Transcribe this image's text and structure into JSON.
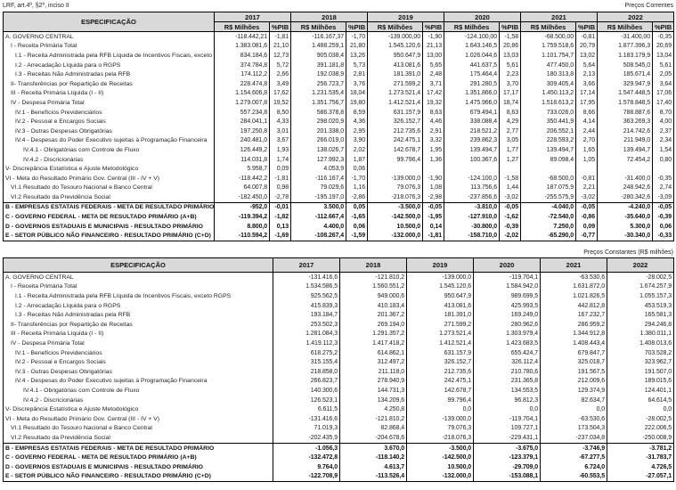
{
  "meta": {
    "top_left_label": "LRF, art.4º, §2º, inciso II",
    "current_prices_caption": "Preços Correntes",
    "constant_prices_caption": "Preços Constantes (R$ milhões)"
  },
  "table": {
    "spec_header": "ESPECIFICAÇÃO",
    "years": [
      "2017",
      "2018",
      "2019",
      "2020",
      "2021",
      "2022"
    ],
    "unit_headers": [
      "R$ Milhões",
      "%PIB"
    ],
    "rows": [
      {
        "label": "A. GOVERNO CENTRAL",
        "indent": 0,
        "bold": false,
        "current": [
          [
            "-118.442,21",
            "-1,81"
          ],
          [
            "-116.167,37",
            "-1,70"
          ],
          [
            "-139.000,00",
            "-1,90"
          ],
          [
            "-124.100,00",
            "-1,58"
          ],
          [
            "-68.500,00",
            "-0,81"
          ],
          [
            "-31.400,00",
            "-0,35"
          ]
        ],
        "constant": [
          "-131.416,6",
          "-121.810,2",
          "-139.000,0",
          "-119.704,1",
          "-63.530,6",
          "-28.002,5"
        ]
      },
      {
        "label": "I - Receita Primária Total",
        "indent": 1,
        "bold": false,
        "current": [
          [
            "1.383.081,6",
            "21,10"
          ],
          [
            "1.488.259,1",
            "21,80"
          ],
          [
            "1.545.120,6",
            "21,13"
          ],
          [
            "1.643.146,5",
            "20,86"
          ],
          [
            "1.759.518,6",
            "20,79"
          ],
          [
            "1.877.396,3",
            "20,69"
          ]
        ],
        "constant": [
          "1.534.586,5",
          "1.560.551,2",
          "1.545.120,6",
          "1.584.942,0",
          "1.631.872,0",
          "1.674.257,9"
        ]
      },
      {
        "label": "I.1 - Receita Administrada pela RFB Líquida de Incentivos Fiscais, exceto RGPS",
        "indent": 2,
        "bold": false,
        "current": [
          [
            "834.184,6",
            "12,73"
          ],
          [
            "905.038,4",
            "13,26"
          ],
          [
            "950.647,9",
            "13,00"
          ],
          [
            "1.026.044,6",
            "13,03"
          ],
          [
            "1.101.754,7",
            "13,02"
          ],
          [
            "1.183.179,9",
            "13,04"
          ]
        ],
        "constant": [
          "925.562,5",
          "949.000,6",
          "950.647,9",
          "989.699,5",
          "1.021.826,5",
          "1.055.157,3"
        ]
      },
      {
        "label": "I.2 - Arrecadação Líquida para o RGPS",
        "indent": 2,
        "bold": false,
        "current": [
          [
            "374.784,8",
            "5,72"
          ],
          [
            "391.181,8",
            "5,73"
          ],
          [
            "413.081,6",
            "5,65"
          ],
          [
            "441.637,5",
            "5,61"
          ],
          [
            "477.450,0",
            "5,64"
          ],
          [
            "508.545,0",
            "5,61"
          ]
        ],
        "constant": [
          "415.839,3",
          "410.183,4",
          "413.081,6",
          "425.993,5",
          "442.812,8",
          "453.519,3"
        ]
      },
      {
        "label": "I.3 - Receitas Não Administradas pela RFB",
        "indent": 2,
        "bold": false,
        "current": [
          [
            "174.112,2",
            "2,66"
          ],
          [
            "192.038,9",
            "2,81"
          ],
          [
            "181.391,0",
            "2,48"
          ],
          [
            "175.464,4",
            "2,23"
          ],
          [
            "180.313,8",
            "2,13"
          ],
          [
            "185.671,4",
            "2,05"
          ]
        ],
        "constant": [
          "193.184,7",
          "201.367,2",
          "181.391,0",
          "169.249,0",
          "167.232,7",
          "165.581,3"
        ]
      },
      {
        "label": "II- Transferências por Repartição de Receitas",
        "indent": 1,
        "bold": false,
        "current": [
          [
            "228.474,8",
            "3,49"
          ],
          [
            "256.723,7",
            "3,76"
          ],
          [
            "271.599,2",
            "3,71"
          ],
          [
            "291.280,5",
            "3,70"
          ],
          [
            "309.405,4",
            "3,66"
          ],
          [
            "329.947,9",
            "3,64"
          ]
        ],
        "constant": [
          "253.502,3",
          "269.194,0",
          "271.599,2",
          "280.962,6",
          "286.959,2",
          "294.246,8"
        ]
      },
      {
        "label": "III - Receita Primária Líquida (I - II)",
        "indent": 1,
        "bold": false,
        "current": [
          [
            "1.154.606,8",
            "17,62"
          ],
          [
            "1.231.535,4",
            "18,04"
          ],
          [
            "1.273.521,4",
            "17,42"
          ],
          [
            "1.351.866,0",
            "17,17"
          ],
          [
            "1.450.113,2",
            "17,14"
          ],
          [
            "1.547.448,5",
            "17,06"
          ]
        ],
        "constant": [
          "1.281.084,3",
          "1.291.357,2",
          "1.273.521,4",
          "1.303.979,4",
          "1.344.912,8",
          "1.380.011,1"
        ]
      },
      {
        "label": "IV - Despesa Primária Total",
        "indent": 1,
        "bold": false,
        "current": [
          [
            "1.279.007,8",
            "19,52"
          ],
          [
            "1.351.756,7",
            "19,80"
          ],
          [
            "1.412.521,4",
            "19,32"
          ],
          [
            "1.475.966,0",
            "18,74"
          ],
          [
            "1.518.613,2",
            "17,95"
          ],
          [
            "1.578.848,5",
            "17,40"
          ]
        ],
        "constant": [
          "1.419.112,3",
          "1.417.418,2",
          "1.412.521,4",
          "1.423.683,5",
          "1.408.443,4",
          "1.408.013,6"
        ]
      },
      {
        "label": "IV.1 - Benefícios Previdenciários",
        "indent": 2,
        "bold": false,
        "current": [
          [
            "557.234,8",
            "8,50"
          ],
          [
            "586.378,8",
            "8,59"
          ],
          [
            "631.157,9",
            "8,63"
          ],
          [
            "679.494,1",
            "8,63"
          ],
          [
            "733.026,0",
            "8,66"
          ],
          [
            "788.887,6",
            "8,70"
          ]
        ],
        "constant": [
          "618.275,2",
          "614.862,1",
          "631.157,9",
          "655.424,7",
          "679.847,7",
          "703.528,2"
        ]
      },
      {
        "label": "IV.2 - Pessoal e Encargos Sociais",
        "indent": 2,
        "bold": false,
        "current": [
          [
            "284.041,1",
            "4,33"
          ],
          [
            "298.020,9",
            "4,36"
          ],
          [
            "326.152,7",
            "4,46"
          ],
          [
            "338.088,4",
            "4,29"
          ],
          [
            "350.441,9",
            "4,14"
          ],
          [
            "363.269,3",
            "4,00"
          ]
        ],
        "constant": [
          "315.155,4",
          "312.497,2",
          "326.152,7",
          "326.112,4",
          "325.018,7",
          "323.962,7"
        ]
      },
      {
        "label": "IV.3 - Outras Despesas Obrigatórias",
        "indent": 2,
        "bold": false,
        "current": [
          [
            "197.250,8",
            "3,01"
          ],
          [
            "201.338,0",
            "2,95"
          ],
          [
            "212.735,6",
            "2,91"
          ],
          [
            "218.521,2",
            "2,77"
          ],
          [
            "206.552,1",
            "2,44"
          ],
          [
            "214.742,6",
            "2,37"
          ]
        ],
        "constant": [
          "218.858,0",
          "211.118,0",
          "212.735,6",
          "210.780,6",
          "191.567,5",
          "191.507,0"
        ]
      },
      {
        "label": "IV.4 - Despesas do Poder Executivo sujeitas à Programação Financeira",
        "indent": 2,
        "bold": false,
        "current": [
          [
            "240.481,0",
            "3,67"
          ],
          [
            "266.019,0",
            "3,90"
          ],
          [
            "242.475,1",
            "3,32"
          ],
          [
            "239.862,3",
            "3,05"
          ],
          [
            "228.593,2",
            "2,70"
          ],
          [
            "211.949,0",
            "2,34"
          ]
        ],
        "constant": [
          "266.823,7",
          "278.940,9",
          "242.475,1",
          "231.365,8",
          "212.009,6",
          "189.015,6"
        ]
      },
      {
        "label": "IV.4.1 - Obrigatórias com Controle de Fluxo",
        "indent": 3,
        "bold": false,
        "current": [
          [
            "126.449,2",
            "1,93"
          ],
          [
            "138.026,7",
            "2,02"
          ],
          [
            "142.678,7",
            "1,95"
          ],
          [
            "139.494,7",
            "1,77"
          ],
          [
            "139.494,7",
            "1,65"
          ],
          [
            "139.494,7",
            "1,54"
          ]
        ],
        "constant": [
          "140.300,6",
          "144.731,3",
          "142.678,7",
          "134.553,5",
          "129.374,9",
          "124.401,1"
        ]
      },
      {
        "label": "IV.4.2 - Discricionárias",
        "indent": 3,
        "bold": false,
        "current": [
          [
            "114.031,8",
            "1,74"
          ],
          [
            "127.992,3",
            "1,87"
          ],
          [
            "99.796,4",
            "1,36"
          ],
          [
            "100.367,6",
            "1,27"
          ],
          [
            "89.098,4",
            "1,05"
          ],
          [
            "72.454,2",
            "0,80"
          ]
        ],
        "constant": [
          "126.523,1",
          "134.209,6",
          "99.796,4",
          "96.812,3",
          "82.634,7",
          "64.614,5"
        ]
      },
      {
        "label": "V- Discrepância Estatística e Ajuste Metodológico",
        "indent": 0,
        "bold": false,
        "current": [
          [
            "5.958,7",
            "0,09"
          ],
          [
            "4.053,9",
            "0,06"
          ],
          [
            "",
            ""
          ],
          [
            "",
            ""
          ],
          [
            "",
            ""
          ],
          [
            "",
            ""
          ]
        ],
        "constant": [
          "6.611,5",
          "4.250,8",
          "0,0",
          "0,0",
          "0,0",
          "0,0"
        ]
      },
      {
        "label": "VI - Meta do Resultado Primário Gov. Central (III - IV + V)",
        "indent": 0,
        "bold": false,
        "current": [
          [
            "-118.442,2",
            "-1,81"
          ],
          [
            "-116.167,4",
            "-1,70"
          ],
          [
            "-139.000,0",
            "-1,90"
          ],
          [
            "-124.100,0",
            "-1,58"
          ],
          [
            "-68.500,0",
            "-0,81"
          ],
          [
            "-31.400,0",
            "-0,35"
          ]
        ],
        "constant": [
          "-131.416,6",
          "-121.810,2",
          "-139.000,0",
          "-119.704,1",
          "-63.530,6",
          "-28.002,5"
        ]
      },
      {
        "label": "VI.1 Resultado do Tesouro Nacional e Banco Central",
        "indent": 1,
        "bold": false,
        "current": [
          [
            "64.007,8",
            "0,98"
          ],
          [
            "79.029,6",
            "1,16"
          ],
          [
            "79.076,3",
            "1,08"
          ],
          [
            "113.756,6",
            "1,44"
          ],
          [
            "187.075,9",
            "2,21"
          ],
          [
            "248.942,6",
            "2,74"
          ]
        ],
        "constant": [
          "71.019,3",
          "82.868,4",
          "79.076,3",
          "109.727,1",
          "173.504,3",
          "222.006,5"
        ]
      },
      {
        "label": "VI.2 Resultado da Previdência Social",
        "indent": 1,
        "bold": false,
        "current": [
          [
            "-182.450,0",
            "-2,78"
          ],
          [
            "-195.197,0",
            "-2,86"
          ],
          [
            "-218.076,3",
            "-2,98"
          ],
          [
            "-237.856,6",
            "-3,02"
          ],
          [
            "-255.575,9",
            "-3,02"
          ],
          [
            "-280.342,6",
            "-3,09"
          ]
        ],
        "constant": [
          "-202.435,9",
          "-204.678,6",
          "-218.076,3",
          "-229.431,1",
          "-237.034,8",
          "-250.008,9"
        ]
      },
      {
        "label": "B -  EMPRESAS ESTATAIS FEDERAIS - META DE RESULTADO PRIMÁRIO",
        "indent": 0,
        "bold": true,
        "section_start": true,
        "current": [
          [
            "-952,0",
            "-0,01"
          ],
          [
            "3.500,0",
            "0,05"
          ],
          [
            "-3.500,0",
            "-0,05"
          ],
          [
            "-3.810,0",
            "-0,05"
          ],
          [
            "-4.040,0",
            "-0,05"
          ],
          [
            "-4.240,0",
            "-0,05"
          ]
        ],
        "constant": [
          "-1.056,3",
          "3.670,0",
          "-3.500,0",
          "-3.675,0",
          "-3.746,9",
          "-3.781,2"
        ]
      },
      {
        "label": "C - GOVERNO FEDERAL - META DE RESULTADO PRIMÁRIO (A+B)",
        "indent": 0,
        "bold": true,
        "current": [
          [
            "-119.394,2",
            "-1,82"
          ],
          [
            "-112.667,4",
            "-1,65"
          ],
          [
            "-142.500,0",
            "-1,95"
          ],
          [
            "-127.910,0",
            "-1,62"
          ],
          [
            "-72.540,0",
            "-0,86"
          ],
          [
            "-35.640,0",
            "-0,39"
          ]
        ],
        "constant": [
          "-132.472,8",
          "-118.140,2",
          "-142.500,0",
          "-123.379,1",
          "-67.277,5",
          "-31.783,7"
        ]
      },
      {
        "label": "D - GOVERNOS ESTADUAIS E MUNICIPAIS - RESULTADO PRIMÁRIO",
        "indent": 0,
        "bold": true,
        "current": [
          [
            "8.800,0",
            "0,13"
          ],
          [
            "4.400,0",
            "0,06"
          ],
          [
            "10.500,0",
            "0,14"
          ],
          [
            "-30.800,0",
            "-0,39"
          ],
          [
            "7.250,0",
            "0,09"
          ],
          [
            "5.300,0",
            "0,06"
          ]
        ],
        "constant": [
          "9.764,0",
          "4.613,7",
          "10.500,0",
          "-29.709,0",
          "6.724,0",
          "4.726,5"
        ]
      },
      {
        "label": "E - SETOR PÚBLICO NÃO FINANCEIRO - RESULTADO PRIMÁRIO (C+D)",
        "indent": 0,
        "bold": true,
        "current": [
          [
            "-110.594,2",
            "-1,69"
          ],
          [
            "-108.267,4",
            "-1,59"
          ],
          [
            "-132.000,0",
            "-1,81"
          ],
          [
            "-158.710,0",
            "-2,02"
          ],
          [
            "-65.290,0",
            "-0,77"
          ],
          [
            "-30.340,0",
            "-0,33"
          ]
        ],
        "constant": [
          "-122.708,9",
          "-113.526,4",
          "-132.000,0",
          "-153.088,1",
          "-60.553,5",
          "-27.057,1"
        ]
      }
    ]
  }
}
